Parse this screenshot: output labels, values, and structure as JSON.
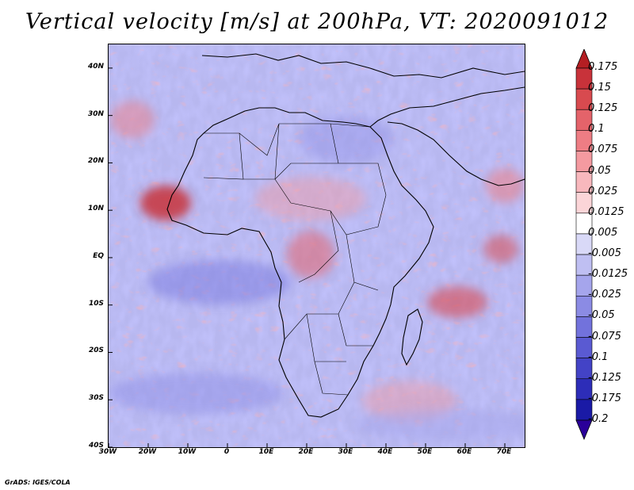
{
  "title": "Vertical velocity [m/s] at 200hPa, VT: 2020091012",
  "credit": "GrADS: IGES/COLA",
  "map": {
    "region": "Africa",
    "projection": "latlon",
    "lon_range": [
      -30,
      75
    ],
    "lat_range": [
      -40,
      45
    ]
  },
  "axes": {
    "lat_ticks": [
      {
        "value": 40,
        "label": "40N"
      },
      {
        "value": 30,
        "label": "30N"
      },
      {
        "value": 20,
        "label": "20N"
      },
      {
        "value": 10,
        "label": "10N"
      },
      {
        "value": 0,
        "label": "EQ"
      },
      {
        "value": -10,
        "label": "10S"
      },
      {
        "value": -20,
        "label": "20S"
      },
      {
        "value": -30,
        "label": "30S"
      },
      {
        "value": -40,
        "label": "40S"
      }
    ],
    "lon_ticks": [
      {
        "value": -30,
        "label": "30W"
      },
      {
        "value": -20,
        "label": "20W"
      },
      {
        "value": -10,
        "label": "10W"
      },
      {
        "value": 0,
        "label": "0"
      },
      {
        "value": 10,
        "label": "10E"
      },
      {
        "value": 20,
        "label": "20E"
      },
      {
        "value": 30,
        "label": "30E"
      },
      {
        "value": 40,
        "label": "40E"
      },
      {
        "value": 50,
        "label": "50E"
      },
      {
        "value": 60,
        "label": "60E"
      },
      {
        "value": 70,
        "label": "70E"
      }
    ]
  },
  "colorbar": {
    "labels": [
      "0.175",
      "0.15",
      "0.125",
      "0.1",
      "0.075",
      "0.05",
      "0.025",
      "0.0125",
      "0.005",
      "-0.005",
      "-0.0125",
      "-0.025",
      "-0.05",
      "-0.075",
      "-0.1",
      "-0.125",
      "-0.175",
      "-0.2"
    ],
    "colors": [
      "#b41e23",
      "#c8323a",
      "#d84a4f",
      "#e4636a",
      "#ee7d84",
      "#f49aa0",
      "#f8b8bd",
      "#fbd5d8",
      "#ffffff",
      "#d9d9f7",
      "#bfbff2",
      "#a5a5ec",
      "#8b8be4",
      "#7272dc",
      "#5a5ad2",
      "#4343c6",
      "#2d2db8",
      "#1a1aa6",
      "#2a0099"
    ]
  }
}
